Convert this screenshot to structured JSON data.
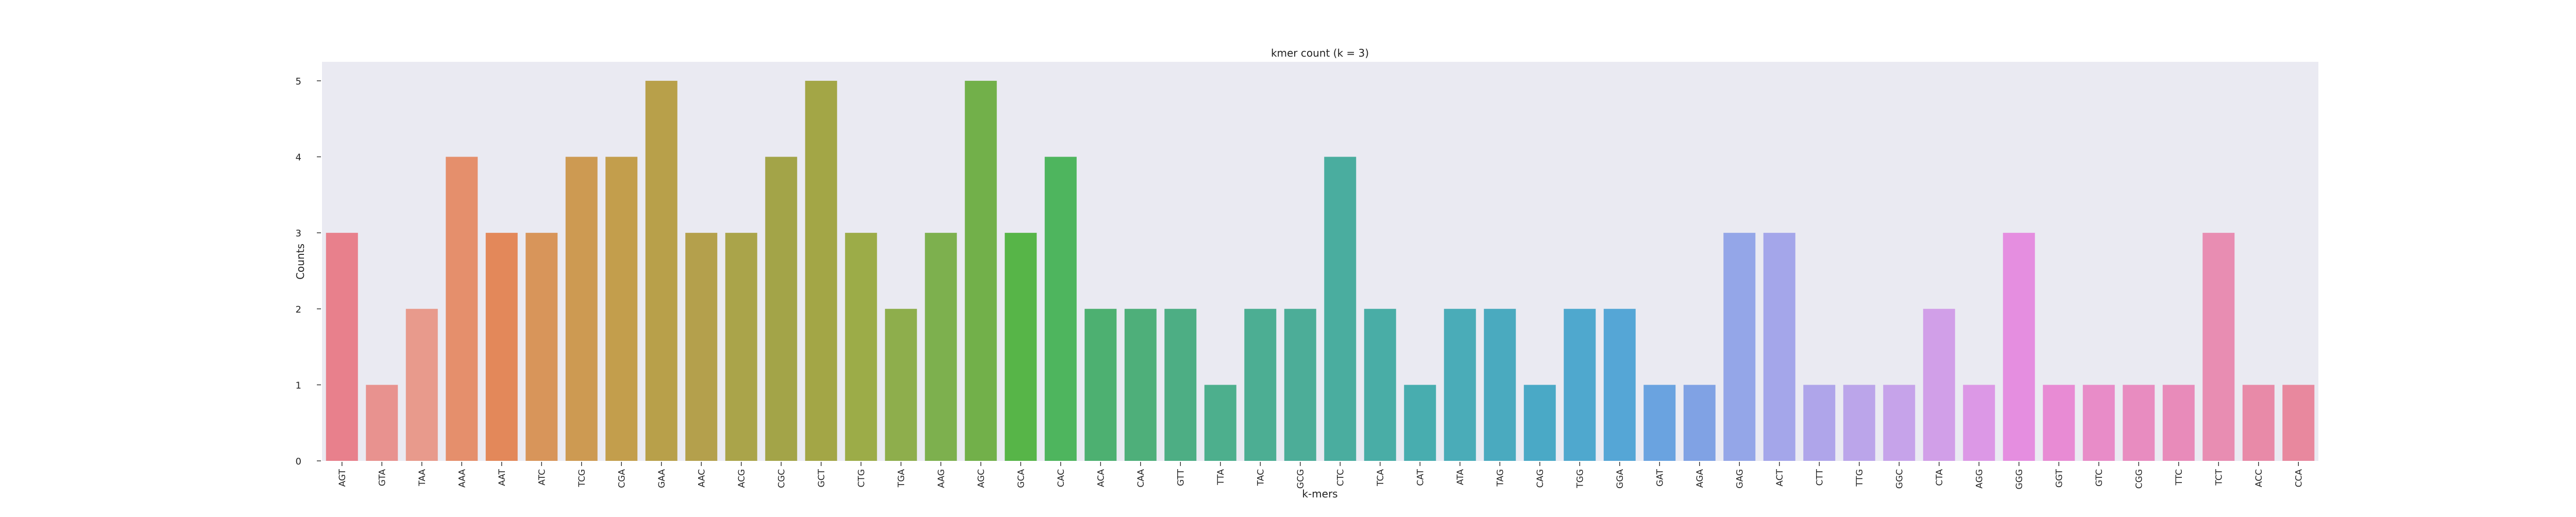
{
  "chart_data": {
    "type": "bar",
    "title": "kmer count (k = 3)",
    "xlabel": "k-mers",
    "ylabel": "Counts",
    "ylim": [
      0,
      5.25
    ],
    "yticks": [
      0,
      1,
      2,
      3,
      4,
      5
    ],
    "grid": false,
    "legend": "none",
    "background": "#eaeaf2",
    "categories": [
      "AGT",
      "GTA",
      "TAA",
      "AAA",
      "AAT",
      "ATC",
      "TCG",
      "CGA",
      "GAA",
      "AAC",
      "ACG",
      "CGC",
      "GCT",
      "CTG",
      "TGA",
      "AAG",
      "AGC",
      "GCA",
      "CAC",
      "ACA",
      "CAA",
      "GTT",
      "TTA",
      "TAC",
      "GCG",
      "CTC",
      "TCA",
      "CAT",
      "ATA",
      "TAG",
      "CAG",
      "TGG",
      "GGA",
      "GAT",
      "AGA",
      "GAG",
      "ACT",
      "CTT",
      "TTG",
      "GGC",
      "CTA",
      "AGG",
      "GGG",
      "GGT",
      "GTC",
      "CGG",
      "TTC",
      "TCT",
      "ACC",
      "CCA"
    ],
    "values": [
      3,
      1,
      2,
      4,
      3,
      3,
      4,
      4,
      5,
      3,
      3,
      4,
      5,
      3,
      2,
      3,
      5,
      3,
      4,
      2,
      2,
      2,
      1,
      2,
      2,
      4,
      2,
      1,
      2,
      2,
      1,
      2,
      2,
      1,
      1,
      3,
      3,
      1,
      1,
      1,
      2,
      1,
      3,
      1,
      1,
      1,
      1,
      3,
      1,
      1
    ],
    "colors": [
      "#e8808c",
      "#e8928f",
      "#e89a8c",
      "#e58f6c",
      "#e3885a",
      "#d8955a",
      "#cd9a52",
      "#c39e4c",
      "#b8a04a",
      "#b4a04c",
      "#aaa44a",
      "#a3a448",
      "#a3a646",
      "#9cac48",
      "#8eae4c",
      "#7db04e",
      "#72b04a",
      "#57b548",
      "#4eb55e",
      "#4db071",
      "#4eaf7a",
      "#4dae84",
      "#4daf8d",
      "#4cae93",
      "#4cad98",
      "#4aad9f",
      "#49ada6",
      "#48adaf",
      "#4aacb8",
      "#4aaabf",
      "#4aa9c6",
      "#4fa8ce",
      "#55a6d6",
      "#6aa3e0",
      "#80a2e4",
      "#94a6e8",
      "#a4a6ea",
      "#afa5ea",
      "#bba5ea",
      "#c6a3ea",
      "#d19fe8",
      "#dc98e6",
      "#e58ee0",
      "#e88bd4",
      "#e88cc8",
      "#e88cc0",
      "#e88bba",
      "#e88db2",
      "#e88aa8",
      "#e8889e"
    ]
  }
}
